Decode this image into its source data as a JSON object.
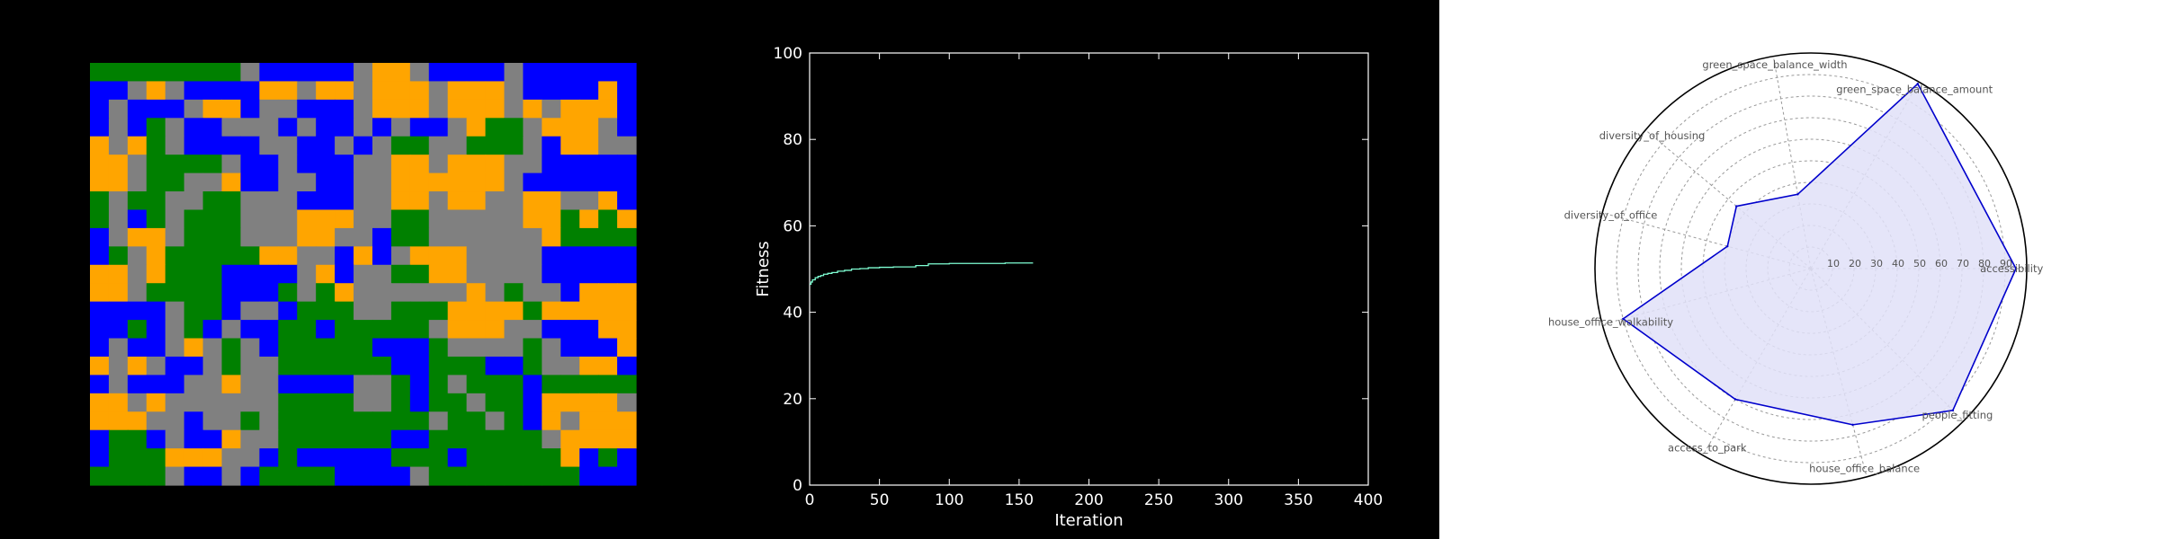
{
  "colors": {
    "background": "#000000",
    "road": "#808080",
    "green": "#008000",
    "blue": "#0000ff",
    "orange": "#ffa500",
    "fitness_line": "#7fffd4",
    "radar_line": "#0000cc",
    "radar_fill": "#e0e0f8"
  },
  "chart_data": [
    {
      "type": "heatmap",
      "legend": {
        "0": "road (gray)",
        "1": "green",
        "2": "blue",
        "3": "orange"
      },
      "rows": [
        "11111111022222033022220222222",
        "22030222233033033303330222232",
        "20222033200222033303330303332",
        "20210220002022020220311033302",
        "30310222200220201100111023300",
        "33011110220222003303330022222",
        "33011003220022003333330222222",
        "10110011000222003303300330032",
        "10210111000333001100000331313",
        "20330111000330021100000031111",
        "21031111133002320333000022222",
        "33031112222032001133000022222",
        "33011112221013000000301002333",
        "22220112002111001113333133333",
        "22120120221121111103330022233",
        "20220301021111122210000102223",
        "30302201001111112211122100332",
        "20222003002222001210111211111",
        "33030000001111001211011233330",
        "33300200101111111101101230333",
        "21120223001111112211111103333",
        "21113330021222221112111113212",
        "11110220211112222011111111222"
      ]
    },
    {
      "type": "line",
      "xlabel": "Iteration",
      "ylabel": "Fitness",
      "xlim": [
        0,
        400
      ],
      "ylim": [
        0,
        100
      ],
      "xticks": [
        0,
        50,
        100,
        150,
        200,
        250,
        300,
        350,
        400
      ],
      "yticks": [
        0,
        20,
        40,
        60,
        80,
        100
      ],
      "grid": false,
      "series": [
        {
          "x": [
            0,
            1,
            2,
            4,
            6,
            8,
            10,
            13,
            16,
            20,
            25,
            30,
            36,
            42,
            50,
            60,
            70,
            76,
            85,
            100,
            120,
            140,
            160
          ],
          "y": [
            46.5,
            47,
            47.5,
            48,
            48.3,
            48.5,
            48.8,
            49,
            49.2,
            49.5,
            49.7,
            50,
            50.1,
            50.3,
            50.4,
            50.5,
            50.5,
            50.8,
            51.2,
            51.3,
            51.3,
            51.4,
            51.4
          ]
        }
      ]
    },
    {
      "type": "radar",
      "rlim": [
        0,
        100
      ],
      "rticks": [
        "10",
        "20",
        "30",
        "40",
        "50",
        "60",
        "70",
        "80",
        "90"
      ],
      "categories": [
        "accessibility",
        "green_space_balance_amount",
        "green_space_balance_width",
        "diversity_of_housing",
        "diversity_of_office",
        "house_office_walkability",
        "people_fitting",
        "access_to_park",
        "house_office_balance"
      ],
      "category_angles_deg": [
        0,
        60,
        100,
        140,
        165,
        195,
        315,
        240,
        285
      ],
      "point_order": [
        0,
        1,
        2,
        3,
        4,
        5,
        7,
        8,
        6
      ],
      "values": [
        95,
        99,
        35,
        45,
        40,
        90,
        93,
        70,
        75
      ],
      "grid": true
    }
  ]
}
